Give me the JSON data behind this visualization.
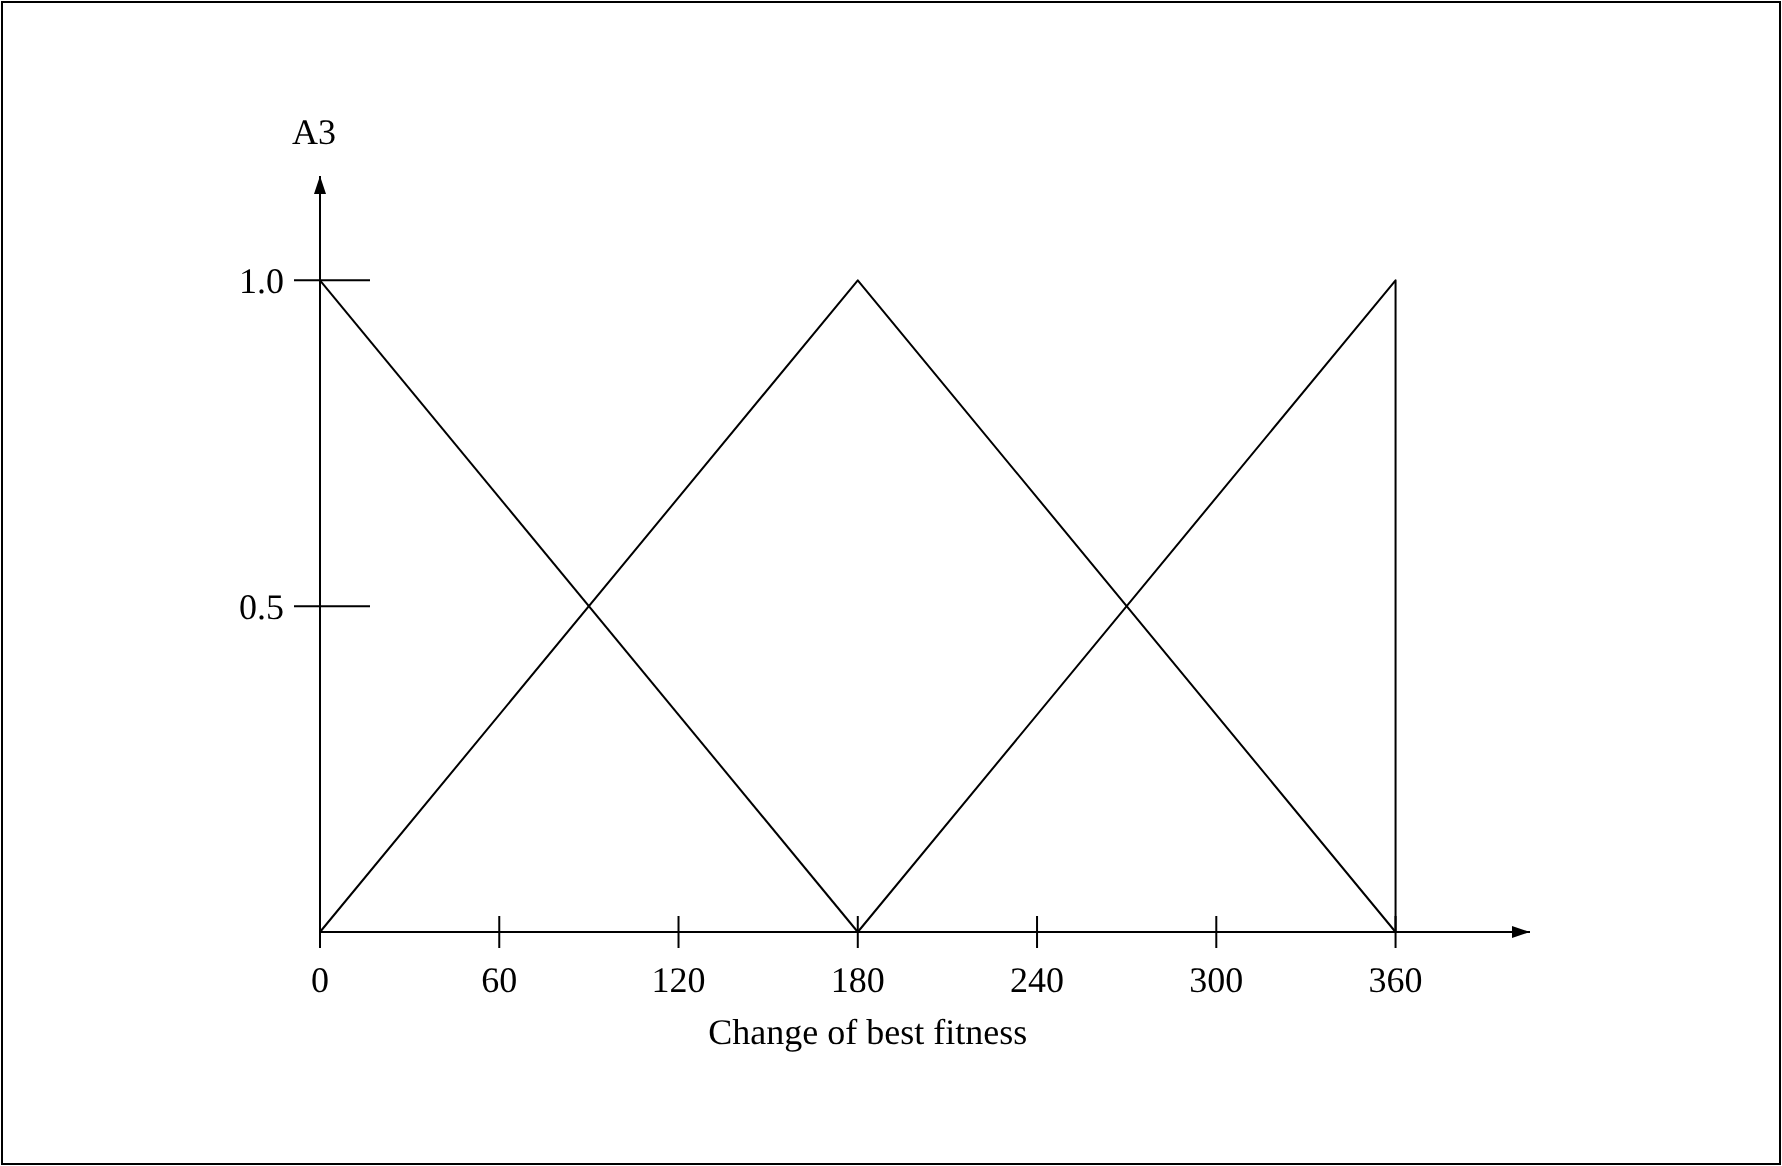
{
  "chart_data": {
    "type": "line",
    "xlabel": "Change of best fitness",
    "ylabel": "A3",
    "xlim": [
      0,
      405
    ],
    "ylim": [
      0,
      1.16
    ],
    "xticks": [
      0,
      60,
      120,
      180,
      240,
      300,
      360
    ],
    "yticks": [
      {
        "value": 0.5,
        "label": "0.5"
      },
      {
        "value": 1,
        "label": "1.0"
      }
    ],
    "series": [
      {
        "color": "#000000",
        "x": [
          0,
          180
        ],
        "values": [
          1,
          0
        ]
      },
      {
        "color": "#000000",
        "x": [
          0,
          180,
          360
        ],
        "values": [
          0,
          1,
          0
        ]
      },
      {
        "color": "#000000",
        "x": [
          180,
          360,
          360
        ],
        "values": [
          0,
          1,
          0
        ]
      }
    ],
    "grid": false,
    "line_style": "solid"
  }
}
